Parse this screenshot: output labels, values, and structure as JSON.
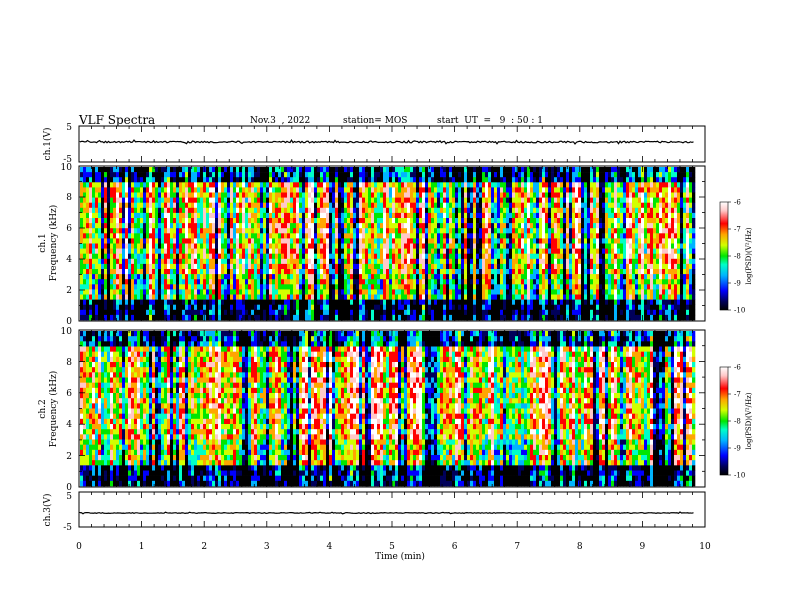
{
  "header": {
    "title": "VLF Spectra",
    "date": "Nov.3  , 2022",
    "station": "station= MOS",
    "start": "start  UT  =   9  : 50 : 1"
  },
  "chart_data": [
    {
      "type": "line",
      "panel": "waveform",
      "ylabel": "ch.1(V)",
      "ylim": [
        -5,
        5
      ],
      "y_ticks": [
        "5",
        "-5"
      ],
      "x_range": [
        0,
        10
      ],
      "series": [
        {
          "values_approx": "flat near -0.5 V with small spikes"
        }
      ]
    },
    {
      "type": "heatmap",
      "panel": "spectrogram",
      "ylabel": "ch.1\nFrequency (kHz)",
      "ylim": [
        0,
        10
      ],
      "y_ticks": [
        "0",
        "2",
        "4",
        "6",
        "8",
        "10"
      ],
      "x_range": [
        0,
        10
      ],
      "x_end_data": 9.83,
      "colorbar": {
        "label": "log(PSD)(V²/Hz)",
        "range": [
          -10,
          -6
        ],
        "ticks": [
          "-6",
          "-7",
          "-8",
          "-9",
          "-10"
        ]
      }
    },
    {
      "type": "heatmap",
      "panel": "spectrogram",
      "ylabel": "ch.2\nFrequency (kHz)",
      "ylim": [
        0,
        10
      ],
      "y_ticks": [
        "0",
        "2",
        "4",
        "6",
        "8",
        "10"
      ],
      "x_range": [
        0,
        10
      ],
      "x_end_data": 9.83,
      "colorbar": {
        "label": "log(PSD)(V²/Hz)",
        "range": [
          -10,
          -6
        ],
        "ticks": [
          "-6",
          "-7",
          "-8",
          "-9",
          "-10"
        ]
      }
    },
    {
      "type": "line",
      "panel": "waveform",
      "ylabel": "ch.3(V)",
      "ylim": [
        -5,
        5
      ],
      "y_ticks": [
        "5",
        "-5"
      ],
      "x_range": [
        0,
        10
      ],
      "series": [
        {
          "values_approx": "flat near -1.5 V"
        }
      ]
    }
  ],
  "x_axis": {
    "label": "Time  (min)",
    "ticks": [
      "0",
      "1",
      "2",
      "3",
      "4",
      "5",
      "6",
      "7",
      "8",
      "9",
      "10"
    ]
  },
  "colors": {
    "colormap": [
      "#000000",
      "#00005a",
      "#0000ff",
      "#00b4ff",
      "#00ffc8",
      "#00e600",
      "#d2ff00",
      "#ffa500",
      "#ff0000",
      "#ffc8c8",
      "#ffffff"
    ]
  }
}
